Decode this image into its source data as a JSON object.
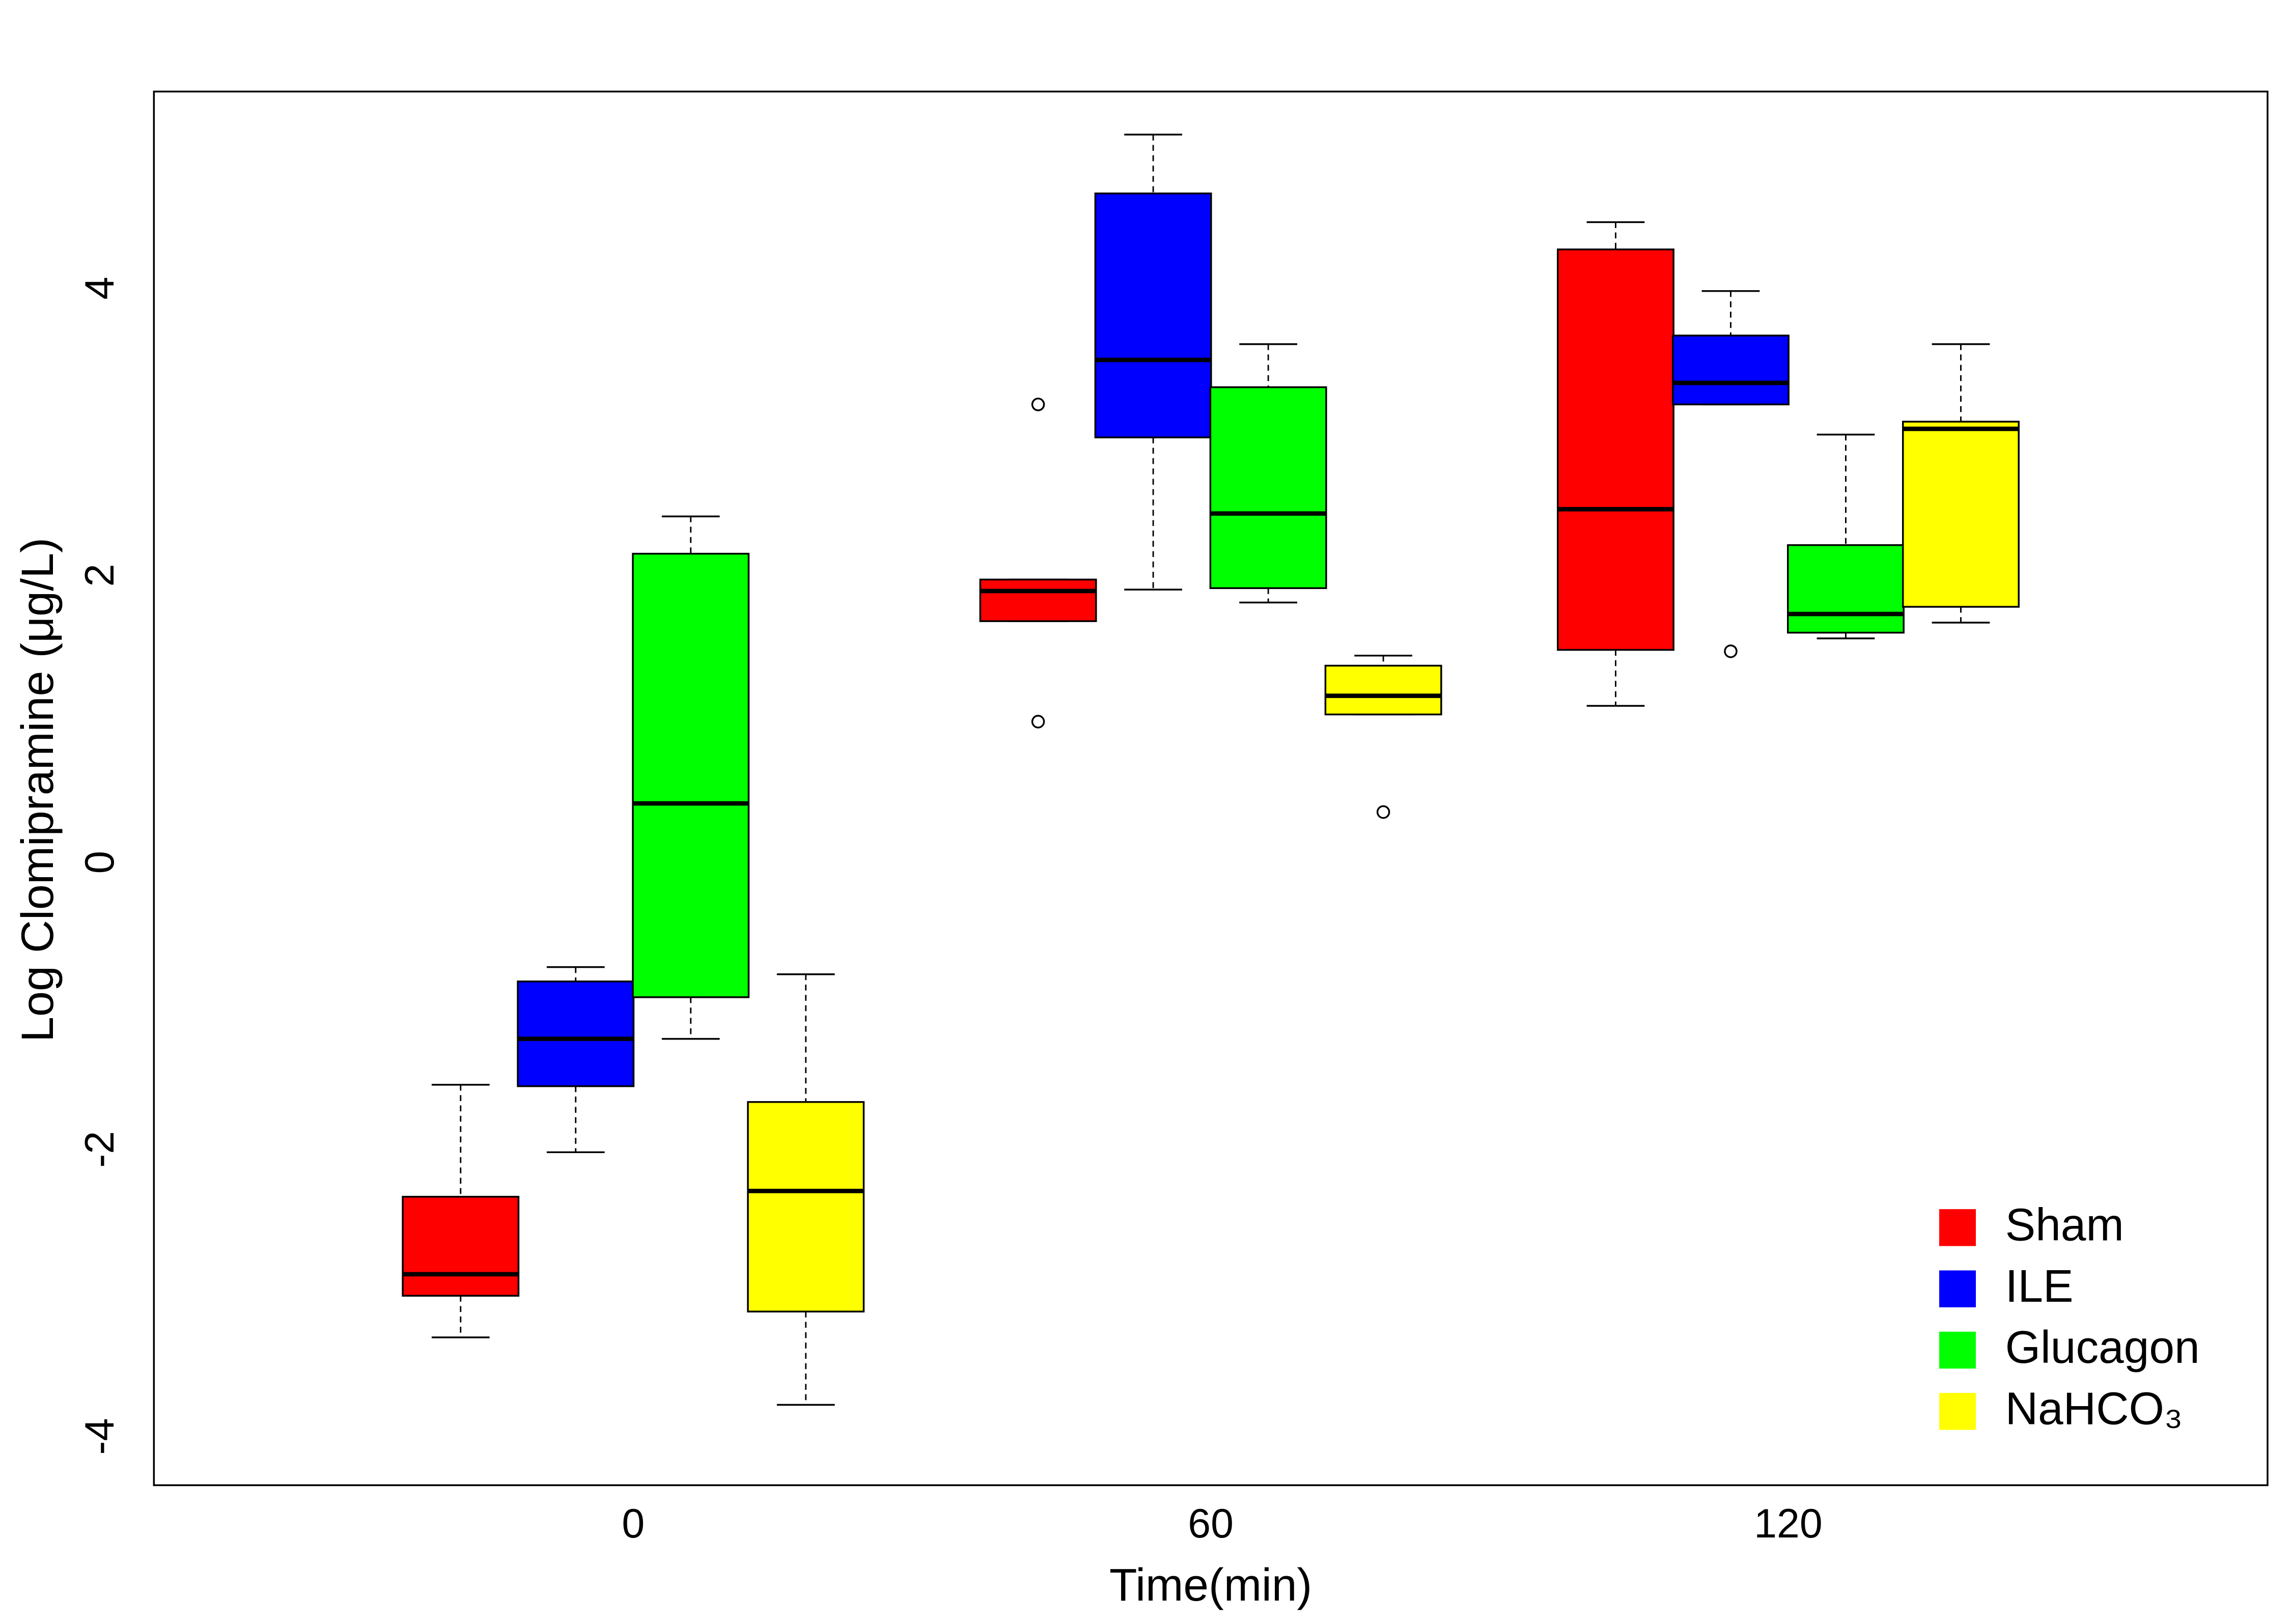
{
  "chart_data": {
    "type": "boxplot",
    "x_label": "Time(min)",
    "y_label": "Log Clomipramine (μg/L)",
    "categories": [
      "0",
      "60",
      "120"
    ],
    "ylim": [
      -4.34,
      5.37
    ],
    "yticks": [
      -4,
      -2,
      0,
      2,
      4
    ],
    "legend": "bottom-right",
    "series": [
      {
        "name": "Sham",
        "color": "#ff0000",
        "min": [
          -3.31,
          1.68,
          1.09
        ],
        "q1": [
          -3.02,
          1.68,
          1.48
        ],
        "median": [
          -2.87,
          1.89,
          2.46
        ],
        "q3": [
          -2.33,
          1.97,
          4.27
        ],
        "max": [
          -1.55,
          1.97,
          4.46
        ],
        "outliers": [
          [],
          [
            3.19,
            0.98
          ],
          []
        ]
      },
      {
        "name": "ILE",
        "color": "#0000ff",
        "min": [
          -2.02,
          1.9,
          3.19
        ],
        "q1": [
          -1.56,
          2.96,
          3.19
        ],
        "median": [
          -1.23,
          3.5,
          3.34
        ],
        "q3": [
          -0.83,
          4.66,
          3.67
        ],
        "max": [
          -0.73,
          5.07,
          3.98
        ],
        "outliers": [
          [],
          [],
          [
            1.47
          ]
        ]
      },
      {
        "name": "Glucagon",
        "color": "#00ff00",
        "min": [
          -1.23,
          1.81,
          1.56
        ],
        "q1": [
          -0.94,
          1.91,
          1.6
        ],
        "median": [
          0.41,
          2.43,
          1.73
        ],
        "q3": [
          2.15,
          3.31,
          2.21
        ],
        "max": [
          2.41,
          3.61,
          2.98
        ],
        "outliers": [
          [],
          [],
          []
        ]
      },
      {
        "name": "NaHCO₃",
        "color": "#ffff00",
        "min": [
          -3.78,
          1.03,
          1.67
        ],
        "q1": [
          -3.13,
          1.03,
          1.78
        ],
        "median": [
          -2.29,
          1.16,
          3.02
        ],
        "q3": [
          -1.67,
          1.37,
          3.07
        ],
        "max": [
          -0.78,
          1.44,
          3.61
        ],
        "outliers": [
          [],
          [
            0.35
          ],
          []
        ]
      }
    ]
  }
}
